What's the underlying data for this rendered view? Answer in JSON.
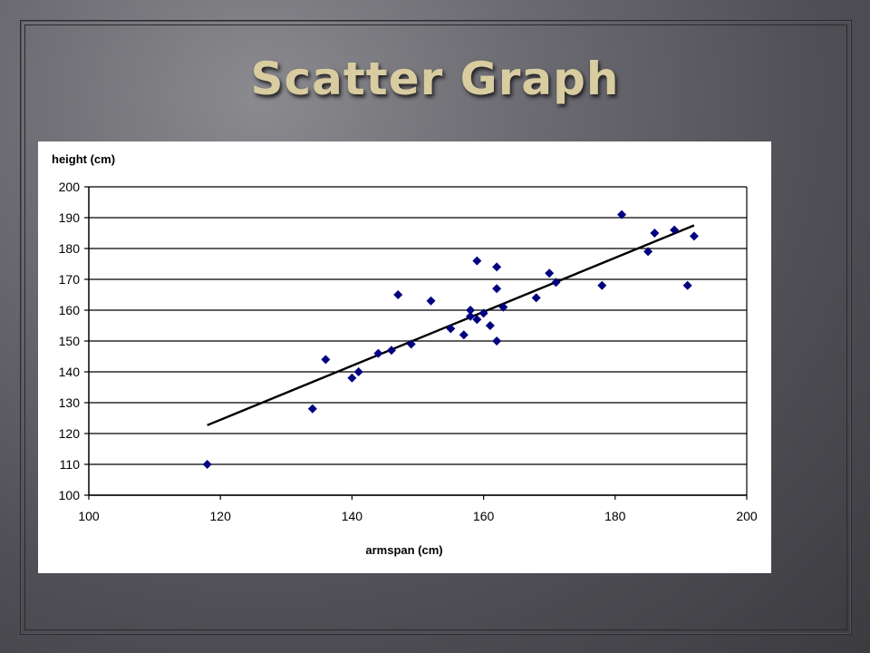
{
  "slide": {
    "title": "Scatter Graph"
  },
  "colors": {
    "point": "#000080",
    "trendline": "#000000",
    "title_text": "#d8cca0",
    "panel": "#ffffff"
  },
  "chart_data": {
    "type": "scatter",
    "title": "",
    "xlabel": "armspan (cm)",
    "ylabel": "height (cm)",
    "xlim": [
      100,
      200
    ],
    "ylim": [
      100,
      200
    ],
    "xticks": [
      100,
      120,
      140,
      160,
      180,
      200
    ],
    "yticks": [
      100,
      110,
      120,
      130,
      140,
      150,
      160,
      170,
      180,
      190,
      200
    ],
    "grid": "horizontal",
    "legend": "none",
    "points": [
      {
        "x": 118,
        "y": 110
      },
      {
        "x": 134,
        "y": 128
      },
      {
        "x": 136,
        "y": 144
      },
      {
        "x": 140,
        "y": 138
      },
      {
        "x": 141,
        "y": 140
      },
      {
        "x": 144,
        "y": 146
      },
      {
        "x": 146,
        "y": 147
      },
      {
        "x": 147,
        "y": 165
      },
      {
        "x": 149,
        "y": 149
      },
      {
        "x": 152,
        "y": 163
      },
      {
        "x": 155,
        "y": 154
      },
      {
        "x": 157,
        "y": 152
      },
      {
        "x": 158,
        "y": 158
      },
      {
        "x": 158,
        "y": 160
      },
      {
        "x": 159,
        "y": 157
      },
      {
        "x": 159,
        "y": 176
      },
      {
        "x": 160,
        "y": 159
      },
      {
        "x": 161,
        "y": 155
      },
      {
        "x": 162,
        "y": 150
      },
      {
        "x": 162,
        "y": 167
      },
      {
        "x": 162,
        "y": 174
      },
      {
        "x": 163,
        "y": 161
      },
      {
        "x": 168,
        "y": 164
      },
      {
        "x": 170,
        "y": 172
      },
      {
        "x": 171,
        "y": 169
      },
      {
        "x": 178,
        "y": 168
      },
      {
        "x": 181,
        "y": 191
      },
      {
        "x": 185,
        "y": 179
      },
      {
        "x": 186,
        "y": 185
      },
      {
        "x": 189,
        "y": 186
      },
      {
        "x": 191,
        "y": 168
      },
      {
        "x": 192,
        "y": 184
      }
    ],
    "trendline": {
      "x": [
        118,
        192
      ],
      "y": [
        122.7,
        187.5
      ]
    }
  }
}
